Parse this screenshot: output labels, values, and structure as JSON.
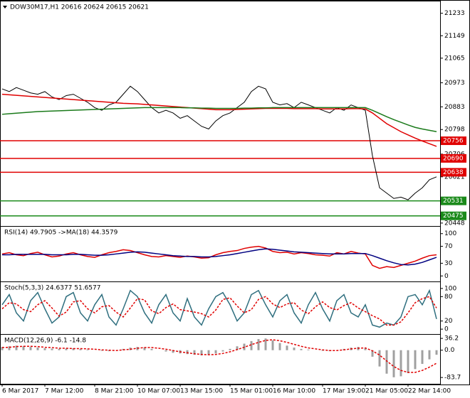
{
  "chart_data": [
    {
      "type": "line",
      "title": "DOW30M17,H1  20616 20624 20615 20621",
      "categories": [
        "6 Mar 2017",
        null,
        null,
        null,
        null,
        null,
        "7 Mar 12:00",
        null,
        null,
        null,
        null,
        null,
        null,
        "8 Mar 21:00",
        null,
        null,
        null,
        null,
        null,
        "10 Mar 07:00",
        null,
        null,
        null,
        null,
        null,
        "13 Mar 15:00",
        null,
        null,
        null,
        null,
        null,
        null,
        "15 Mar 01:00",
        null,
        null,
        null,
        null,
        null,
        "16 Mar 10:00",
        null,
        null,
        null,
        null,
        null,
        null,
        "17 Mar 19:00",
        null,
        null,
        null,
        null,
        null,
        "21 Mar 05:00",
        null,
        null,
        null,
        null,
        null,
        "22 Mar 14:00",
        null,
        null,
        null,
        null
      ],
      "series": [
        {
          "color": "#000000",
          "values": [
            20950,
            20940,
            20955,
            20945,
            20935,
            20930,
            20940,
            20920,
            20910,
            20925,
            20930,
            20915,
            20900,
            20880,
            20870,
            20890,
            20900,
            20930,
            20960,
            20940,
            20910,
            20880,
            20860,
            20870,
            20860,
            20840,
            20850,
            20830,
            20810,
            20800,
            20830,
            20850,
            20860,
            20880,
            20900,
            20940,
            20960,
            20950,
            20900,
            20890,
            20895,
            20880,
            20900,
            20890,
            20880,
            20870,
            20860,
            20880,
            20870,
            20890,
            20880,
            20870,
            20700,
            20580,
            20560,
            20540,
            20545,
            20535,
            20560,
            20580,
            20610,
            20621
          ]
        },
        {
          "color": "#e00000",
          "values": [
            20930,
            20928,
            20926,
            20924,
            20922,
            20920,
            20918,
            20916,
            20914,
            20912,
            20910,
            20908,
            20906,
            20904,
            20902,
            20900,
            20898,
            20896,
            20895,
            20894,
            20892,
            20890,
            20888,
            20886,
            20884,
            20882,
            20880,
            20878,
            20876,
            20874,
            20872,
            20872,
            20872,
            20873,
            20874,
            20875,
            20876,
            20877,
            20877,
            20877,
            20877,
            20876,
            20876,
            20876,
            20876,
            20875,
            20875,
            20875,
            20875,
            20876,
            20876,
            20875,
            20860,
            20840,
            20820,
            20805,
            20790,
            20778,
            20766,
            20755,
            20745,
            20735
          ]
        },
        {
          "color": "#1a7a1a",
          "values": [
            20855,
            20857,
            20859,
            20861,
            20863,
            20865,
            20866,
            20867,
            20868,
            20869,
            20870,
            20871,
            20872,
            20873,
            20874,
            20875,
            20876,
            20877,
            20878,
            20879,
            20880,
            20880,
            20880,
            20880,
            20880,
            20880,
            20879,
            20879,
            20878,
            20878,
            20877,
            20877,
            20877,
            20877,
            20878,
            20878,
            20879,
            20879,
            20880,
            20880,
            20880,
            20880,
            20880,
            20880,
            20880,
            20880,
            20880,
            20880,
            20880,
            20880,
            20880,
            20880,
            20870,
            20858,
            20846,
            20835,
            20825,
            20815,
            20806,
            20800,
            20795,
            20790
          ]
        }
      ],
      "levels": [
        {
          "value": 20756,
          "color": "#e00000"
        },
        {
          "value": 20690,
          "color": "#e00000"
        },
        {
          "value": 20638,
          "color": "#e00000"
        },
        {
          "value": 20531,
          "color": "#1a8a1a"
        },
        {
          "value": 20475,
          "color": "#1a8a1a"
        }
      ],
      "ylim": [
        20437,
        21272
      ],
      "yticks": [
        21233,
        21149,
        21065,
        20973,
        20883,
        20798,
        20706,
        20621,
        20448
      ]
    },
    {
      "type": "line",
      "title": "RSI(14) 49.7905 ->MA(18) 44.3579",
      "series": [
        {
          "color": "#e00000",
          "values": [
            52,
            55,
            50,
            48,
            53,
            56,
            50,
            45,
            47,
            52,
            55,
            50,
            46,
            44,
            50,
            55,
            58,
            62,
            60,
            55,
            50,
            46,
            45,
            48,
            46,
            44,
            47,
            45,
            42,
            43,
            50,
            55,
            58,
            60,
            65,
            68,
            70,
            66,
            58,
            55,
            56,
            52,
            55,
            53,
            50,
            49,
            47,
            55,
            52,
            58,
            54,
            52,
            25,
            18,
            22,
            20,
            25,
            30,
            35,
            42,
            48,
            50
          ]
        },
        {
          "color": "#000080",
          "values": [
            50,
            50,
            51,
            51,
            51,
            51,
            51,
            50,
            50,
            50,
            51,
            51,
            50,
            49,
            49,
            50,
            52,
            54,
            56,
            57,
            56,
            54,
            52,
            50,
            48,
            47,
            46,
            46,
            45,
            45,
            46,
            48,
            50,
            53,
            56,
            59,
            62,
            64,
            63,
            61,
            59,
            57,
            56,
            55,
            54,
            53,
            52,
            52,
            52,
            53,
            53,
            53,
            48,
            42,
            36,
            31,
            27,
            26,
            28,
            32,
            38,
            44
          ]
        }
      ],
      "ylim": [
        -13,
        113
      ],
      "yticks": [
        100,
        70,
        30,
        0
      ]
    },
    {
      "type": "line",
      "title": "Stoch(5,3,3) 24.6377 51.6577",
      "series": [
        {
          "color": "#2f6f7f",
          "values": [
            60,
            85,
            40,
            20,
            70,
            90,
            50,
            15,
            30,
            80,
            90,
            40,
            20,
            60,
            85,
            30,
            10,
            50,
            95,
            80,
            40,
            15,
            60,
            85,
            40,
            20,
            75,
            30,
            10,
            50,
            80,
            90,
            60,
            20,
            40,
            85,
            95,
            60,
            30,
            70,
            85,
            40,
            15,
            60,
            90,
            50,
            20,
            70,
            85,
            40,
            30,
            60,
            10,
            5,
            15,
            10,
            30,
            80,
            85,
            60,
            95,
            25
          ]
        },
        {
          "color": "#e00000",
          "dash": true,
          "values": [
            50,
            65,
            62,
            48,
            43,
            60,
            70,
            52,
            32,
            42,
            67,
            70,
            50,
            40,
            55,
            58,
            42,
            30,
            52,
            75,
            72,
            45,
            38,
            53,
            62,
            48,
            45,
            42,
            38,
            30,
            47,
            73,
            77,
            57,
            40,
            48,
            73,
            80,
            62,
            53,
            62,
            65,
            47,
            38,
            55,
            67,
            53,
            47,
            58,
            65,
            52,
            43,
            33,
            25,
            10,
            10,
            18,
            40,
            65,
            75,
            80,
            52
          ]
        }
      ],
      "ylim": [
        -12,
        112
      ],
      "yticks": [
        100,
        80,
        20,
        0
      ]
    },
    {
      "type": "line",
      "title": "MACD(12,26,9) -6.1 -14.8",
      "series": [
        {
          "color": "#a0a0a0",
          "type": "bar",
          "values": [
            10,
            12,
            14,
            12,
            10,
            8,
            6,
            5,
            4,
            5,
            6,
            4,
            2,
            0,
            -2,
            -3,
            0,
            4,
            8,
            10,
            8,
            4,
            0,
            -4,
            -8,
            -10,
            -12,
            -14,
            -16,
            -14,
            -10,
            -4,
            4,
            12,
            20,
            28,
            34,
            36,
            30,
            22,
            14,
            8,
            4,
            2,
            0,
            -2,
            -3,
            0,
            4,
            8,
            10,
            6,
            -20,
            -50,
            -72,
            -83,
            -80,
            -70,
            -58,
            -42,
            -28,
            -14
          ]
        },
        {
          "color": "#e00000",
          "dash": true,
          "values": [
            8,
            9,
            11,
            12,
            12,
            11,
            9,
            8,
            6,
            6,
            5,
            5,
            4,
            3,
            1,
            0,
            -1,
            1,
            3,
            6,
            8,
            8,
            6,
            3,
            -1,
            -5,
            -8,
            -11,
            -13,
            -14,
            -13,
            -10,
            -5,
            2,
            9,
            17,
            24,
            30,
            32,
            29,
            24,
            18,
            12,
            7,
            4,
            1,
            -1,
            -1,
            1,
            4,
            6,
            7,
            -2,
            -15,
            -33,
            -50,
            -62,
            -68,
            -68,
            -62,
            -52,
            -40
          ]
        }
      ],
      "ylim": [
        -103,
        43
      ],
      "yticks": [
        36.2,
        {
          "value": 0,
          "label": "0.0"
        },
        -83.7
      ]
    }
  ]
}
